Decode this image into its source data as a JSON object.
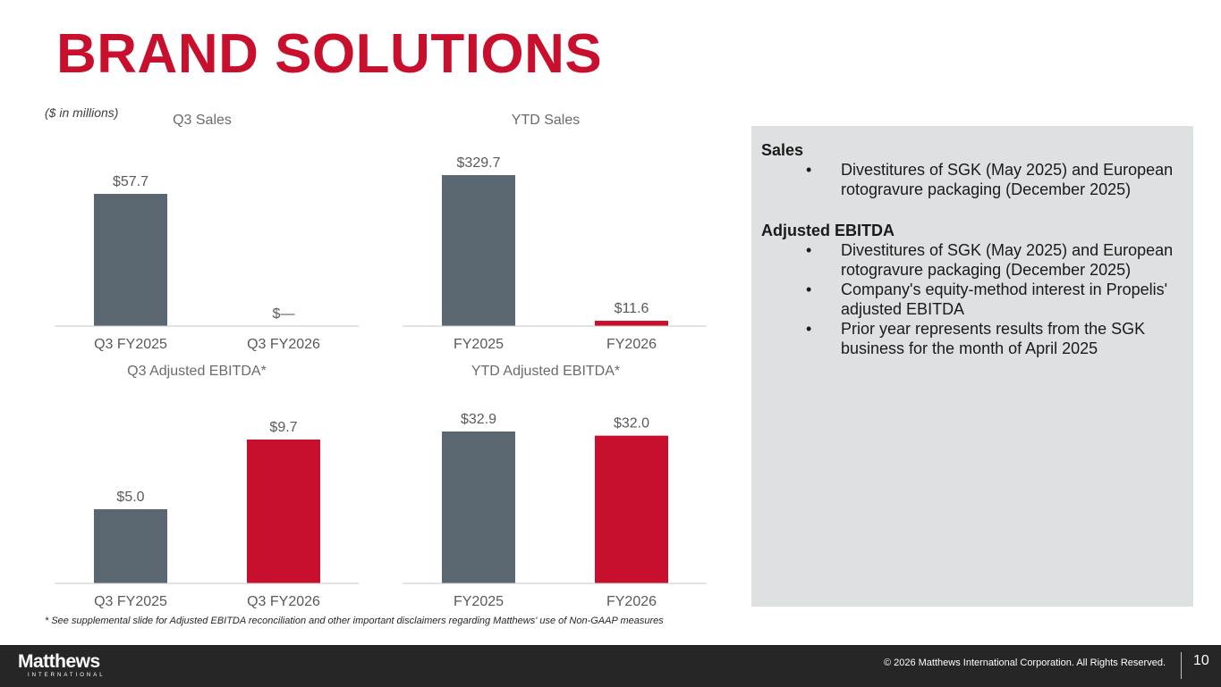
{
  "slide": {
    "title": "BRAND SOLUTIONS",
    "units_note": "($ in millions)",
    "footnote": "* See supplemental slide for Adjusted EBITDA reconciliation and other important disclaimers regarding Matthews' use of Non-GAAP measures",
    "page_number": "10"
  },
  "colors": {
    "brand_red": "#c8102e",
    "bar_gray": "#5b6770",
    "notes_bg": "#dde1e2",
    "footer_bg": "#262626"
  },
  "chart_data": [
    {
      "type": "bar",
      "title": "Q3 Sales",
      "categories": [
        "Q3 FY2025",
        "Q3 FY2026"
      ],
      "values": [
        57.7,
        0
      ],
      "labels": [
        "$57.7",
        "$—"
      ],
      "colors": [
        "#5b6770",
        "#c8102e"
      ],
      "ylim": [
        0,
        57.7
      ]
    },
    {
      "type": "bar",
      "title": "YTD Sales",
      "categories": [
        "FY2025",
        "FY2026"
      ],
      "values": [
        329.7,
        11.6
      ],
      "labels": [
        "$329.7",
        "$11.6"
      ],
      "colors": [
        "#5b6770",
        "#c8102e"
      ],
      "ylim": [
        0,
        329.7
      ]
    },
    {
      "type": "bar",
      "title": "Q3 Adjusted EBITDA*",
      "categories": [
        "Q3 FY2025",
        "Q3 FY2026"
      ],
      "values": [
        5.0,
        9.7
      ],
      "labels": [
        "$5.0",
        "$9.7"
      ],
      "colors": [
        "#5b6770",
        "#c8102e"
      ],
      "ylim": [
        0,
        9.7
      ]
    },
    {
      "type": "bar",
      "title": "YTD Adjusted EBITDA*",
      "categories": [
        "FY2025",
        "FY2026"
      ],
      "values": [
        32.9,
        32.0
      ],
      "labels": [
        "$32.9",
        "$32.0"
      ],
      "colors": [
        "#5b6770",
        "#c8102e"
      ],
      "ylim": [
        0,
        32.9
      ]
    }
  ],
  "notes": {
    "sections": [
      {
        "heading": "Sales",
        "bullets": [
          "Divestitures of SGK (May 2025) and European rotogravure packaging (December 2025)"
        ]
      },
      {
        "heading": "Adjusted EBITDA",
        "bullets": [
          "Divestitures of SGK (May 2025) and European rotogravure packaging (December 2025)",
          "Company's equity-method interest in Propelis' adjusted EBITDA",
          "Prior year represents results from the SGK business for the month of April 2025"
        ]
      }
    ],
    "bullet_char": "•"
  },
  "footer": {
    "logo_text": "Matthews",
    "logo_subtext": "INTERNATIONAL",
    "copyright": "© 2026 Matthews International Corporation. All Rights Reserved."
  }
}
